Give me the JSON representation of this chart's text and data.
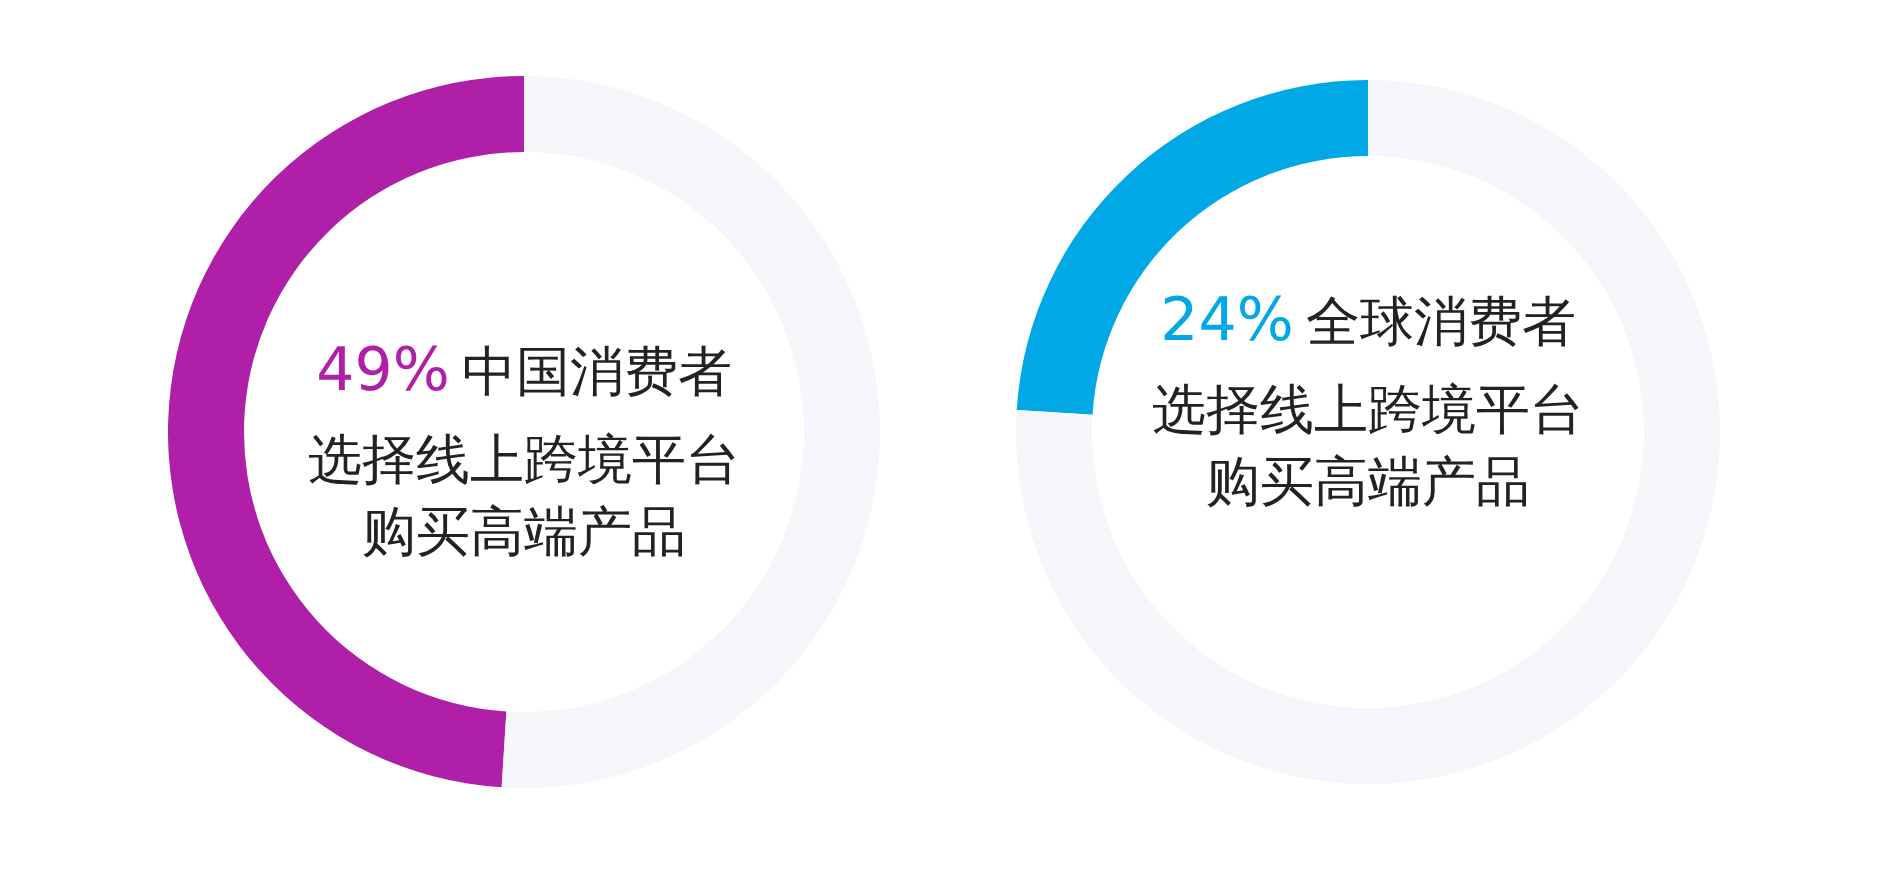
{
  "chart_data": [
    {
      "type": "donut",
      "categories": [
        "中国消费者",
        null
      ],
      "values": [
        49,
        51
      ],
      "colors": [
        "#b01fa8",
        "#f5f6f9"
      ],
      "value_labels": [
        "49%",
        null
      ],
      "annotations": [
        "选择线上跨境平台",
        "购买高端产品"
      ]
    },
    {
      "type": "donut",
      "categories": [
        "全球消费者",
        null
      ],
      "values": [
        24,
        76
      ],
      "colors": [
        "#00a8e6",
        "#f5f6f9"
      ],
      "value_labels": [
        "24%",
        null
      ],
      "annotations": [
        "选择线上跨境平台",
        "购买高端产品"
      ]
    }
  ]
}
